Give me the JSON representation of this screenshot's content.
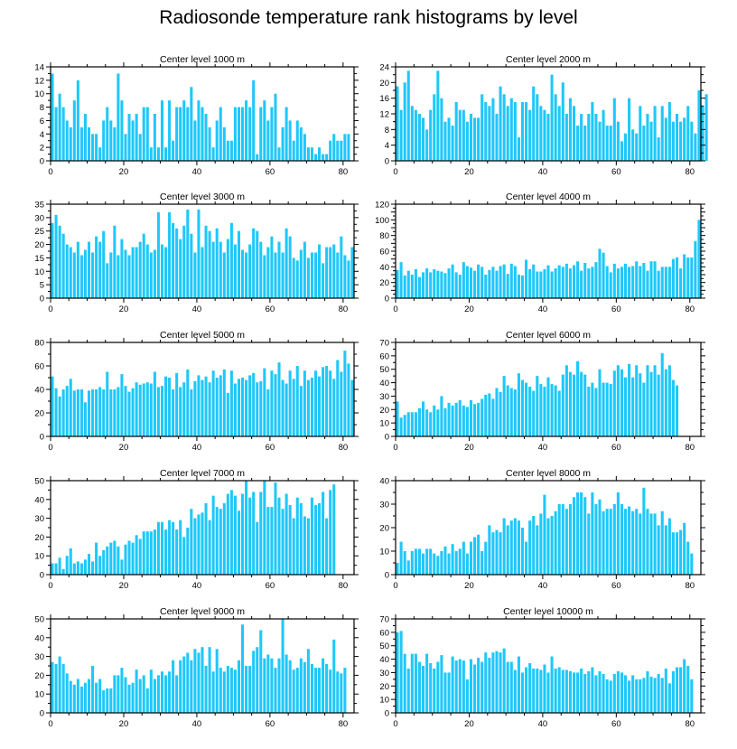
{
  "colors": {
    "bar": "#1ec8fa",
    "axis": "#000000",
    "background": "#ffffff"
  },
  "title": "Radiosonde temperature rank histograms by level",
  "chart_data": [
    {
      "type": "bar",
      "title": "Center level 1000 m",
      "xlim": [
        0,
        83
      ],
      "ylim": [
        0,
        14
      ],
      "xticks": [
        0,
        20,
        40,
        60,
        80
      ],
      "yticks": [
        0,
        2,
        4,
        6,
        8,
        10,
        12,
        14
      ],
      "categories_start": 0,
      "values": [
        13,
        8,
        10,
        8,
        6,
        5,
        9,
        12,
        5,
        7,
        5,
        4,
        4,
        2,
        6,
        8,
        6,
        5,
        13,
        9,
        4,
        7,
        6,
        7,
        4,
        8,
        8,
        2,
        7,
        2,
        9,
        2,
        9,
        3,
        8,
        8,
        9,
        8,
        11,
        6,
        9,
        8,
        7,
        5,
        2,
        6,
        8,
        5,
        3,
        3,
        8,
        8,
        8,
        9,
        8,
        12,
        1,
        8,
        9,
        6,
        8,
        10,
        2,
        5,
        8,
        6,
        3,
        6,
        5,
        4,
        2,
        2,
        1,
        2,
        1,
        1,
        3,
        4,
        3,
        3,
        4,
        4
      ],
      "xlabel": "",
      "ylabel": ""
    },
    {
      "type": "bar",
      "title": "Center level 2000 m",
      "xlim": [
        0,
        83
      ],
      "ylim": [
        0,
        24
      ],
      "xticks": [
        0,
        20,
        40,
        60,
        80
      ],
      "yticks": [
        0,
        4,
        8,
        12,
        16,
        20,
        24
      ],
      "categories_start": 0,
      "values": [
        19,
        13,
        20,
        23,
        14,
        13,
        12,
        11,
        8,
        13,
        17,
        23,
        16,
        10,
        11,
        9,
        15,
        13,
        13,
        10,
        12,
        11,
        11,
        17,
        15,
        14,
        16,
        12,
        19,
        17,
        14,
        16,
        15,
        6,
        15,
        15,
        13,
        19,
        17,
        14,
        13,
        12,
        22,
        17,
        14,
        20,
        12,
        16,
        14,
        9,
        12,
        9,
        12,
        15,
        12,
        10,
        13,
        9,
        9,
        16,
        10,
        5,
        7,
        16,
        8,
        7,
        14,
        9,
        12,
        10,
        14,
        6,
        14,
        11,
        15,
        10,
        12,
        10,
        11,
        14,
        10,
        7,
        18,
        14,
        17
      ],
      "xlabel": "",
      "ylabel": ""
    },
    {
      "type": "bar",
      "title": "Center level 3000 m",
      "xlim": [
        0,
        83
      ],
      "ylim": [
        0,
        35
      ],
      "xticks": [
        0,
        20,
        40,
        60,
        80
      ],
      "yticks": [
        0,
        5,
        10,
        15,
        20,
        25,
        30,
        35
      ],
      "categories_start": 0,
      "values": [
        28,
        31,
        27,
        24,
        20,
        19,
        17,
        21,
        16,
        18,
        21,
        17,
        23,
        21,
        25,
        13,
        17,
        27,
        16,
        22,
        18,
        16,
        19,
        19,
        21,
        24,
        20,
        17,
        18,
        32,
        20,
        19,
        32,
        28,
        26,
        22,
        27,
        33,
        24,
        17,
        33,
        19,
        27,
        25,
        21,
        26,
        21,
        17,
        22,
        28,
        20,
        25,
        18,
        17,
        20,
        26,
        25,
        21,
        16,
        19,
        23,
        17,
        21,
        17,
        26,
        23,
        15,
        14,
        18,
        21,
        15,
        17,
        17,
        20,
        13,
        19,
        19,
        20,
        17,
        23,
        16,
        14,
        19
      ],
      "xlabel": "",
      "ylabel": ""
    },
    {
      "type": "bar",
      "title": "Center level 4000 m",
      "xlim": [
        0,
        83
      ],
      "ylim": [
        0,
        120
      ],
      "xticks": [
        0,
        20,
        40,
        60,
        80
      ],
      "yticks": [
        0,
        10,
        20,
        30,
        40,
        50,
        60,
        70,
        80,
        90,
        100,
        110,
        120
      ],
      "ytick_labels": [
        0,
        "",
        20,
        "",
        40,
        "",
        60,
        "",
        80,
        "",
        100,
        "",
        120
      ],
      "categories_start": 0,
      "values": [
        36,
        46,
        29,
        35,
        30,
        37,
        27,
        33,
        38,
        33,
        37,
        35,
        34,
        32,
        38,
        43,
        33,
        30,
        46,
        41,
        39,
        35,
        43,
        40,
        30,
        36,
        40,
        35,
        41,
        43,
        31,
        44,
        41,
        30,
        29,
        49,
        37,
        43,
        34,
        34,
        37,
        42,
        34,
        38,
        42,
        40,
        44,
        38,
        42,
        47,
        35,
        45,
        38,
        40,
        46,
        63,
        58,
        41,
        33,
        44,
        38,
        40,
        44,
        40,
        41,
        47,
        41,
        45,
        35,
        47,
        47,
        35,
        40,
        40,
        40,
        50,
        52,
        38,
        56,
        52,
        52,
        73,
        100
      ],
      "xlabel": "",
      "ylabel": ""
    },
    {
      "type": "bar",
      "title": "Center level 5000 m",
      "xlim": [
        0,
        83
      ],
      "ylim": [
        0,
        80
      ],
      "xticks": [
        0,
        20,
        40,
        60,
        80
      ],
      "yticks": [
        0,
        20,
        40,
        60,
        80
      ],
      "categories_start": 0,
      "values": [
        51,
        41,
        34,
        40,
        43,
        49,
        39,
        40,
        40,
        29,
        39,
        40,
        40,
        42,
        40,
        55,
        40,
        40,
        42,
        53,
        43,
        38,
        41,
        46,
        44,
        45,
        46,
        45,
        55,
        42,
        43,
        51,
        50,
        40,
        54,
        42,
        46,
        57,
        40,
        47,
        52,
        48,
        51,
        46,
        56,
        50,
        52,
        57,
        37,
        56,
        45,
        49,
        50,
        48,
        52,
        54,
        46,
        47,
        58,
        40,
        56,
        53,
        63,
        48,
        45,
        56,
        49,
        60,
        43,
        56,
        48,
        50,
        56,
        51,
        59,
        60,
        56,
        49,
        65,
        55,
        73,
        62,
        48
      ],
      "xlabel": "",
      "ylabel": ""
    },
    {
      "type": "bar",
      "title": "Center level 6000 m",
      "xlim": [
        0,
        83
      ],
      "ylim": [
        0,
        70
      ],
      "xticks": [
        0,
        20,
        40,
        60,
        80
      ],
      "yticks": [
        0,
        10,
        20,
        30,
        40,
        50,
        60,
        70
      ],
      "categories_start": 0,
      "values": [
        26,
        14,
        16,
        18,
        18,
        18,
        21,
        26,
        20,
        18,
        23,
        20,
        30,
        21,
        25,
        23,
        25,
        27,
        23,
        22,
        27,
        24,
        25,
        28,
        31,
        32,
        28,
        36,
        33,
        45,
        38,
        36,
        35,
        47,
        42,
        40,
        37,
        34,
        45,
        39,
        37,
        44,
        39,
        38,
        34,
        46,
        53,
        48,
        46,
        56,
        48,
        46,
        37,
        40,
        36,
        50,
        40,
        40,
        39,
        49,
        53,
        50,
        44,
        54,
        44,
        53,
        47,
        40,
        53,
        48,
        53,
        46,
        62,
        50,
        53,
        42,
        38
      ],
      "xlabel": "",
      "ylabel": ""
    },
    {
      "type": "bar",
      "title": "Center level 7000 m",
      "xlim": [
        0,
        83
      ],
      "ylim": [
        0,
        50
      ],
      "xticks": [
        0,
        20,
        40,
        60,
        80
      ],
      "yticks": [
        0,
        10,
        20,
        30,
        40,
        50
      ],
      "categories_start": 0,
      "values": [
        6,
        6,
        9,
        3,
        10,
        14,
        6,
        7,
        6,
        8,
        11,
        7,
        17,
        10,
        13,
        15,
        17,
        18,
        15,
        8,
        16,
        18,
        17,
        21,
        19,
        23,
        23,
        23,
        24,
        28,
        28,
        24,
        29,
        28,
        24,
        29,
        20,
        25,
        35,
        30,
        32,
        33,
        38,
        29,
        42,
        36,
        35,
        38,
        43,
        45,
        42,
        34,
        43,
        50,
        41,
        44,
        28,
        44,
        50,
        36,
        36,
        49,
        41,
        35,
        43,
        37,
        30,
        41,
        38,
        31,
        30,
        41,
        37,
        38,
        44,
        30,
        45,
        48
      ],
      "xlabel": "",
      "ylabel": ""
    },
    {
      "type": "bar",
      "title": "Center level 8000 m",
      "xlim": [
        0,
        83
      ],
      "ylim": [
        0,
        40
      ],
      "xticks": [
        0,
        20,
        40,
        60,
        80
      ],
      "yticks": [
        0,
        10,
        20,
        30,
        40
      ],
      "categories_start": 0,
      "values": [
        5,
        14,
        10,
        6,
        10,
        11,
        11,
        9,
        11,
        11,
        9,
        8,
        10,
        12,
        9,
        13,
        10,
        11,
        14,
        9,
        14,
        16,
        17,
        10,
        14,
        21,
        18,
        19,
        18,
        24,
        21,
        23,
        24,
        23,
        20,
        14,
        23,
        25,
        21,
        26,
        34,
        24,
        25,
        27,
        30,
        30,
        28,
        30,
        33,
        35,
        35,
        33,
        26,
        35,
        30,
        32,
        27,
        28,
        28,
        30,
        35,
        30,
        28,
        29,
        27,
        28,
        26,
        37,
        28,
        26,
        26,
        21,
        27,
        21,
        24,
        18,
        18,
        19,
        22,
        14,
        9
      ],
      "xlabel": "",
      "ylabel": ""
    },
    {
      "type": "bar",
      "title": "Center level 9000 m",
      "xlim": [
        0,
        83
      ],
      "ylim": [
        0,
        50
      ],
      "xticks": [
        0,
        20,
        40,
        60,
        80
      ],
      "yticks": [
        0,
        10,
        20,
        30,
        40,
        50
      ],
      "categories_start": 0,
      "values": [
        27,
        26,
        30,
        26,
        21,
        17,
        15,
        18,
        14,
        16,
        18,
        25,
        16,
        18,
        12,
        13,
        13,
        20,
        20,
        24,
        19,
        15,
        16,
        23,
        18,
        20,
        13,
        23,
        18,
        20,
        22,
        20,
        22,
        28,
        20,
        28,
        30,
        32,
        28,
        34,
        32,
        35,
        25,
        35,
        22,
        34,
        24,
        22,
        25,
        24,
        23,
        28,
        47,
        25,
        25,
        33,
        35,
        44,
        29,
        31,
        29,
        24,
        29,
        50,
        31,
        28,
        23,
        24,
        29,
        27,
        34,
        26,
        24,
        24,
        29,
        26,
        23,
        39,
        22,
        21,
        24
      ],
      "xlabel": "",
      "ylabel": ""
    },
    {
      "type": "bar",
      "title": "Center level 10000 m",
      "xlim": [
        0,
        83
      ],
      "ylim": [
        0,
        70
      ],
      "xticks": [
        0,
        20,
        40,
        60,
        80
      ],
      "yticks": [
        0,
        10,
        20,
        30,
        40,
        50,
        60,
        70
      ],
      "categories_start": 0,
      "values": [
        60,
        61,
        44,
        33,
        44,
        44,
        38,
        35,
        44,
        37,
        33,
        38,
        43,
        30,
        30,
        42,
        39,
        40,
        39,
        25,
        40,
        36,
        41,
        38,
        45,
        41,
        45,
        46,
        45,
        48,
        38,
        38,
        32,
        42,
        30,
        34,
        37,
        33,
        33,
        32,
        36,
        30,
        42,
        33,
        34,
        32,
        32,
        31,
        30,
        30,
        33,
        29,
        31,
        34,
        28,
        31,
        29,
        25,
        24,
        29,
        31,
        30,
        28,
        24,
        28,
        25,
        25,
        26,
        31,
        27,
        26,
        29,
        26,
        33,
        22,
        31,
        34,
        34,
        40,
        35,
        25
      ],
      "xlabel": "",
      "ylabel": ""
    }
  ]
}
